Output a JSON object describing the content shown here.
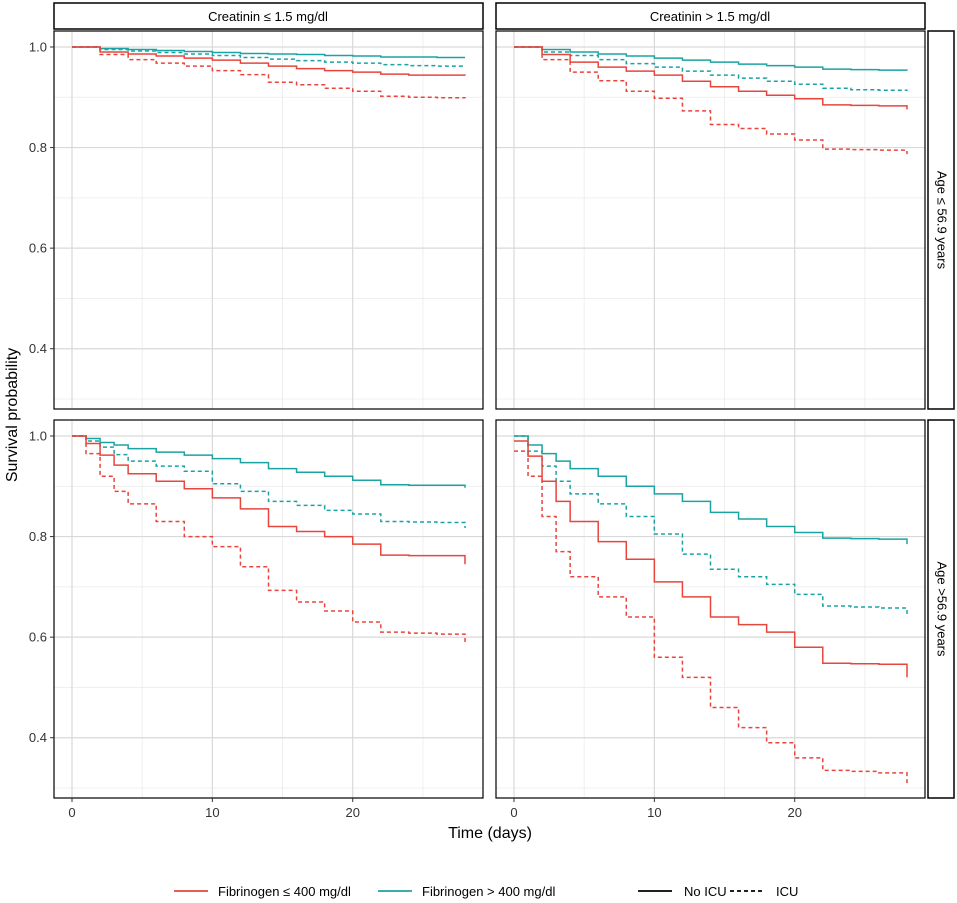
{
  "figure": {
    "xlabel": "Time (days)",
    "ylabel": "Survival probability"
  },
  "facets": {
    "columns": [
      "Creatinin ≤ 1.5 mg/dl",
      "Creatinin > 1.5 mg/dl"
    ],
    "rows": [
      "Age ≤ 56.9 years",
      "Age >56.9 years"
    ]
  },
  "legend": {
    "color": [
      {
        "label": "Fibrinogen ≤ 400 mg/dl",
        "color": "#E8453C"
      },
      {
        "label": "Fibrinogen > 400 mg/dl",
        "color": "#1BA3A3"
      }
    ],
    "linetype": [
      {
        "label": "No ICU",
        "dash": "solid"
      },
      {
        "label": "ICU",
        "dash": "dashed"
      }
    ]
  },
  "chart_data": {
    "type": "line",
    "subtype": "kaplan-meier step",
    "xlim": [
      0,
      28
    ],
    "ylim": [
      0.3,
      1.0
    ],
    "xticks": [
      0,
      10,
      20
    ],
    "yticks": [
      0.4,
      0.6,
      0.8,
      1.0
    ],
    "ytick_labels": [
      "0.4",
      "0.6",
      "0.8",
      "1.0"
    ],
    "panels": [
      {
        "row": 0,
        "col": 0,
        "series": [
          {
            "name": "Fibrinogen > 400 mg/dl, No ICU",
            "color": "#1BA3A3",
            "dash": "solid",
            "x": [
              0,
              2,
              4,
              6,
              8,
              10,
              12,
              14,
              16,
              18,
              20,
              22,
              24,
              26,
              28
            ],
            "y": [
              1.0,
              0.997,
              0.995,
              0.993,
              0.991,
              0.989,
              0.987,
              0.986,
              0.985,
              0.983,
              0.982,
              0.98,
              0.98,
              0.979,
              0.979
            ]
          },
          {
            "name": "Fibrinogen > 400 mg/dl, ICU",
            "color": "#1BA3A3",
            "dash": "dashed",
            "x": [
              0,
              2,
              4,
              6,
              8,
              10,
              12,
              14,
              16,
              18,
              20,
              22,
              24,
              26,
              28
            ],
            "y": [
              1.0,
              0.995,
              0.992,
              0.989,
              0.986,
              0.983,
              0.979,
              0.976,
              0.973,
              0.97,
              0.968,
              0.965,
              0.963,
              0.962,
              0.961
            ]
          },
          {
            "name": "Fibrinogen ≤ 400 mg/dl, No ICU",
            "color": "#E8453C",
            "dash": "solid",
            "x": [
              0,
              2,
              4,
              6,
              8,
              10,
              12,
              14,
              16,
              18,
              20,
              22,
              24,
              26,
              28
            ],
            "y": [
              1.0,
              0.99,
              0.986,
              0.982,
              0.978,
              0.974,
              0.968,
              0.962,
              0.957,
              0.953,
              0.95,
              0.946,
              0.944,
              0.944,
              0.943
            ]
          },
          {
            "name": "Fibrinogen ≤ 400 mg/dl, ICU",
            "color": "#E8453C",
            "dash": "dashed",
            "x": [
              0,
              2,
              4,
              6,
              8,
              10,
              12,
              14,
              16,
              18,
              20,
              22,
              24,
              26,
              28
            ],
            "y": [
              1.0,
              0.985,
              0.975,
              0.968,
              0.962,
              0.953,
              0.945,
              0.93,
              0.925,
              0.918,
              0.912,
              0.902,
              0.9,
              0.899,
              0.898
            ]
          }
        ]
      },
      {
        "row": 0,
        "col": 1,
        "series": [
          {
            "name": "Fibrinogen > 400 mg/dl, No ICU",
            "color": "#1BA3A3",
            "dash": "solid",
            "x": [
              0,
              2,
              4,
              6,
              8,
              10,
              12,
              14,
              16,
              18,
              20,
              22,
              24,
              26,
              28
            ],
            "y": [
              1.0,
              0.995,
              0.99,
              0.986,
              0.982,
              0.978,
              0.974,
              0.97,
              0.966,
              0.963,
              0.96,
              0.956,
              0.955,
              0.954,
              0.953
            ]
          },
          {
            "name": "Fibrinogen > 400 mg/dl, ICU",
            "color": "#1BA3A3",
            "dash": "dashed",
            "x": [
              0,
              2,
              4,
              6,
              8,
              10,
              12,
              14,
              16,
              18,
              20,
              22,
              24,
              26,
              28
            ],
            "y": [
              1.0,
              0.99,
              0.983,
              0.975,
              0.967,
              0.96,
              0.952,
              0.944,
              0.938,
              0.932,
              0.926,
              0.918,
              0.915,
              0.914,
              0.913
            ]
          },
          {
            "name": "Fibrinogen ≤ 400 mg/dl, No ICU",
            "color": "#E8453C",
            "dash": "solid",
            "x": [
              0,
              2,
              4,
              6,
              8,
              10,
              12,
              14,
              16,
              18,
              20,
              22,
              24,
              26,
              28
            ],
            "y": [
              1.0,
              0.985,
              0.97,
              0.96,
              0.952,
              0.944,
              0.932,
              0.921,
              0.912,
              0.904,
              0.897,
              0.885,
              0.884,
              0.883,
              0.876
            ]
          },
          {
            "name": "Fibrinogen ≤ 400 mg/dl, ICU",
            "color": "#E8453C",
            "dash": "dashed",
            "x": [
              0,
              2,
              4,
              6,
              8,
              10,
              12,
              14,
              16,
              18,
              20,
              22,
              24,
              26,
              28
            ],
            "y": [
              1.0,
              0.975,
              0.95,
              0.933,
              0.912,
              0.898,
              0.873,
              0.846,
              0.838,
              0.827,
              0.815,
              0.797,
              0.796,
              0.795,
              0.787
            ]
          }
        ]
      },
      {
        "row": 1,
        "col": 0,
        "series": [
          {
            "name": "Fibrinogen > 400 mg/dl, No ICU",
            "color": "#1BA3A3",
            "dash": "solid",
            "x": [
              0,
              1,
              2,
              3,
              4,
              6,
              8,
              10,
              12,
              14,
              16,
              18,
              20,
              22,
              24,
              26,
              28
            ],
            "y": [
              1.0,
              0.995,
              0.987,
              0.982,
              0.975,
              0.968,
              0.962,
              0.955,
              0.947,
              0.935,
              0.928,
              0.92,
              0.912,
              0.903,
              0.902,
              0.902,
              0.897
            ]
          },
          {
            "name": "Fibrinogen > 400 mg/dl, ICU",
            "color": "#1BA3A3",
            "dash": "dashed",
            "x": [
              0,
              1,
              2,
              3,
              4,
              6,
              8,
              10,
              12,
              14,
              16,
              18,
              20,
              22,
              24,
              26,
              28
            ],
            "y": [
              1.0,
              0.99,
              0.978,
              0.963,
              0.95,
              0.94,
              0.93,
              0.905,
              0.89,
              0.87,
              0.862,
              0.852,
              0.845,
              0.83,
              0.829,
              0.828,
              0.817
            ]
          },
          {
            "name": "Fibrinogen ≤ 400 mg/dl, No ICU",
            "color": "#E8453C",
            "dash": "solid",
            "x": [
              0,
              1,
              2,
              3,
              4,
              6,
              8,
              10,
              12,
              14,
              16,
              18,
              20,
              22,
              24,
              26,
              28
            ],
            "y": [
              1.0,
              0.985,
              0.962,
              0.942,
              0.925,
              0.91,
              0.895,
              0.877,
              0.855,
              0.82,
              0.81,
              0.8,
              0.785,
              0.763,
              0.762,
              0.762,
              0.745
            ]
          },
          {
            "name": "Fibrinogen ≤ 400 mg/dl, ICU",
            "color": "#E8453C",
            "dash": "dashed",
            "x": [
              0,
              1,
              2,
              3,
              4,
              6,
              8,
              10,
              12,
              14,
              16,
              18,
              20,
              22,
              24,
              26,
              28
            ],
            "y": [
              1.0,
              0.965,
              0.92,
              0.89,
              0.865,
              0.83,
              0.8,
              0.78,
              0.74,
              0.693,
              0.67,
              0.652,
              0.63,
              0.61,
              0.608,
              0.606,
              0.585
            ]
          }
        ]
      },
      {
        "row": 1,
        "col": 1,
        "series": [
          {
            "name": "Fibrinogen > 400 mg/dl, No ICU",
            "color": "#1BA3A3",
            "dash": "solid",
            "x": [
              0,
              1,
              2,
              3,
              4,
              6,
              8,
              10,
              12,
              14,
              16,
              18,
              20,
              22,
              24,
              26,
              28
            ],
            "y": [
              1.0,
              0.982,
              0.965,
              0.95,
              0.935,
              0.92,
              0.9,
              0.885,
              0.87,
              0.848,
              0.835,
              0.82,
              0.808,
              0.797,
              0.796,
              0.795,
              0.785
            ]
          },
          {
            "name": "Fibrinogen > 400 mg/dl, ICU",
            "color": "#1BA3A3",
            "dash": "dashed",
            "x": [
              0,
              1,
              2,
              3,
              4,
              6,
              8,
              10,
              12,
              14,
              16,
              18,
              20,
              22,
              24,
              26,
              28
            ],
            "y": [
              1.0,
              0.97,
              0.94,
              0.91,
              0.885,
              0.865,
              0.84,
              0.805,
              0.765,
              0.735,
              0.72,
              0.705,
              0.685,
              0.662,
              0.66,
              0.658,
              0.64
            ]
          },
          {
            "name": "Fibrinogen ≤ 400 mg/dl, No ICU",
            "color": "#E8453C",
            "dash": "solid",
            "x": [
              0,
              1,
              2,
              3,
              4,
              6,
              8,
              10,
              12,
              14,
              16,
              18,
              20,
              22,
              24,
              26,
              28
            ],
            "y": [
              0.99,
              0.96,
              0.91,
              0.87,
              0.83,
              0.79,
              0.755,
              0.71,
              0.68,
              0.64,
              0.625,
              0.61,
              0.58,
              0.548,
              0.547,
              0.546,
              0.52
            ]
          },
          {
            "name": "Fibrinogen ≤ 400 mg/dl, ICU",
            "color": "#E8453C",
            "dash": "dashed",
            "x": [
              0,
              1,
              2,
              3,
              4,
              6,
              8,
              10,
              12,
              14,
              16,
              18,
              20,
              22,
              24,
              26,
              28
            ],
            "y": [
              0.97,
              0.92,
              0.84,
              0.77,
              0.72,
              0.68,
              0.64,
              0.56,
              0.52,
              0.46,
              0.42,
              0.39,
              0.36,
              0.335,
              0.333,
              0.33,
              0.305
            ]
          }
        ]
      }
    ]
  }
}
